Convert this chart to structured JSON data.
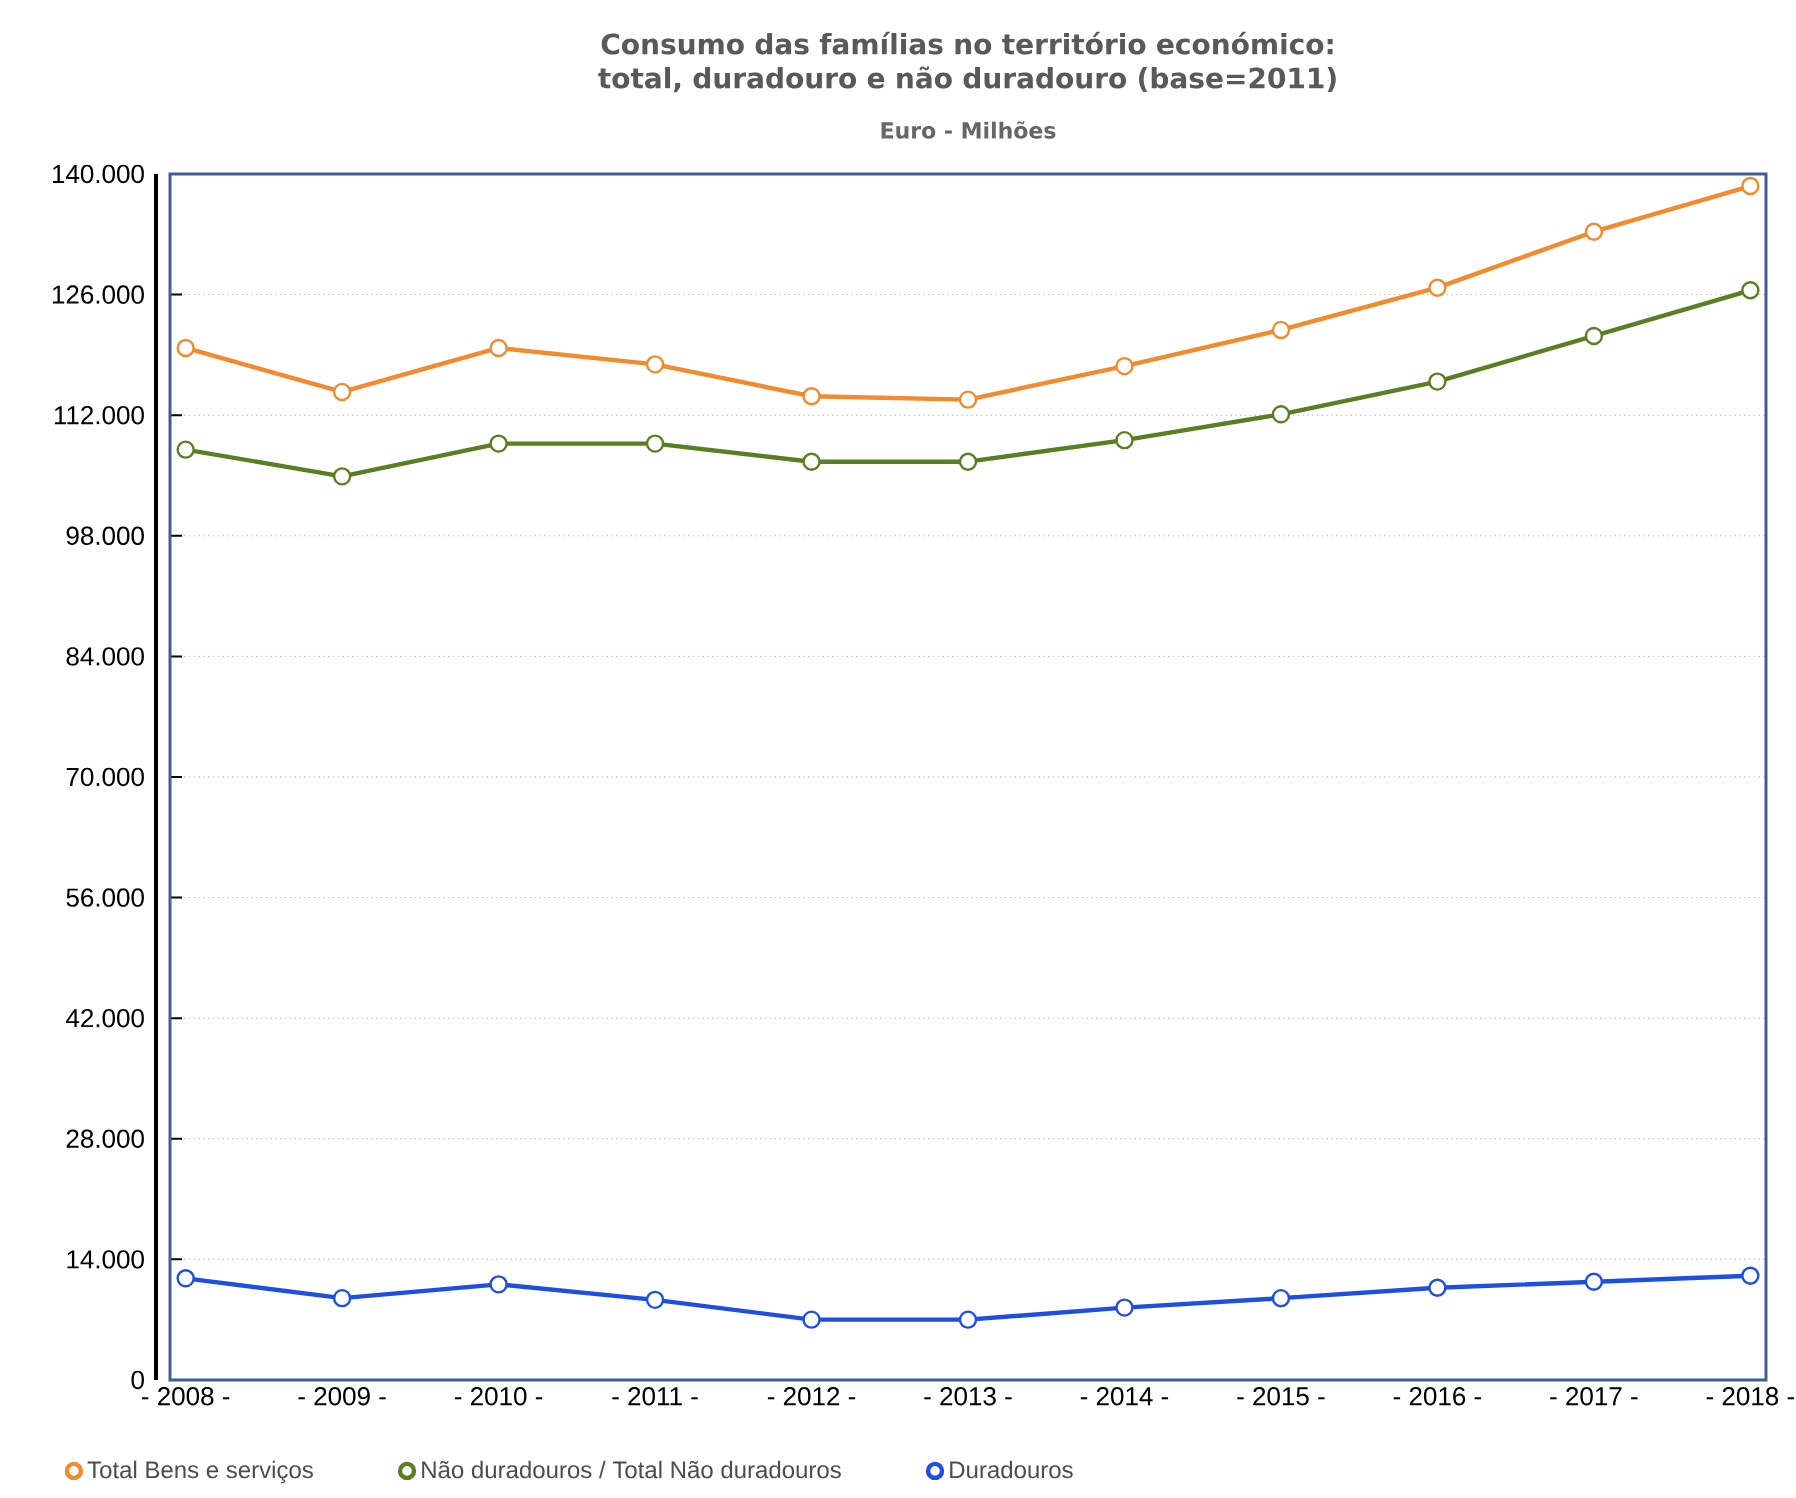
{
  "chart_data": {
    "type": "line",
    "title": "Consumo das famílias no território económico: total, duradouro e não duradouro (base=2011)",
    "subtitle": "Euro - Milhões",
    "categories": [
      "- 2008 -",
      "- 2009 -",
      "- 2010 -",
      "- 2011 -",
      "- 2012 -",
      "- 2013 -",
      "- 2014 -",
      "- 2015 -",
      "- 2016 -",
      "- 2017 -",
      "- 2018 -"
    ],
    "series": [
      {
        "name": "Total Bens e serviços",
        "color": "#f28a2e",
        "values": [
          119800,
          114700,
          119800,
          117900,
          114200,
          113800,
          117700,
          121900,
          126800,
          133300,
          138600
        ]
      },
      {
        "name": "Não duradouros / Total Não duradouros",
        "color": "#5a7f23",
        "values": [
          108000,
          104900,
          108700,
          108700,
          106600,
          106600,
          109100,
          112100,
          115900,
          121200,
          126500
        ]
      },
      {
        "name": "Duradouros",
        "color": "#1f4fe0",
        "values": [
          11800,
          9500,
          11100,
          9300,
          7000,
          7000,
          8400,
          9500,
          10700,
          11400,
          12100
        ]
      }
    ],
    "ylim": [
      0,
      140000
    ],
    "yticks": [
      {
        "value": 0,
        "label": "0"
      },
      {
        "value": 14000,
        "label": "14.000"
      },
      {
        "value": 28000,
        "label": "28.000"
      },
      {
        "value": 42000,
        "label": "42.000"
      },
      {
        "value": 56000,
        "label": "56.000"
      },
      {
        "value": 70000,
        "label": "70.000"
      },
      {
        "value": 84000,
        "label": "84.000"
      },
      {
        "value": 98000,
        "label": "98.000"
      },
      {
        "value": 112000,
        "label": "112.000"
      },
      {
        "value": 126000,
        "label": "126.000"
      },
      {
        "value": 140000,
        "label": "140.000"
      }
    ],
    "grid": "y",
    "legend": "bottom",
    "marker": "circle",
    "line_style": "solid"
  }
}
